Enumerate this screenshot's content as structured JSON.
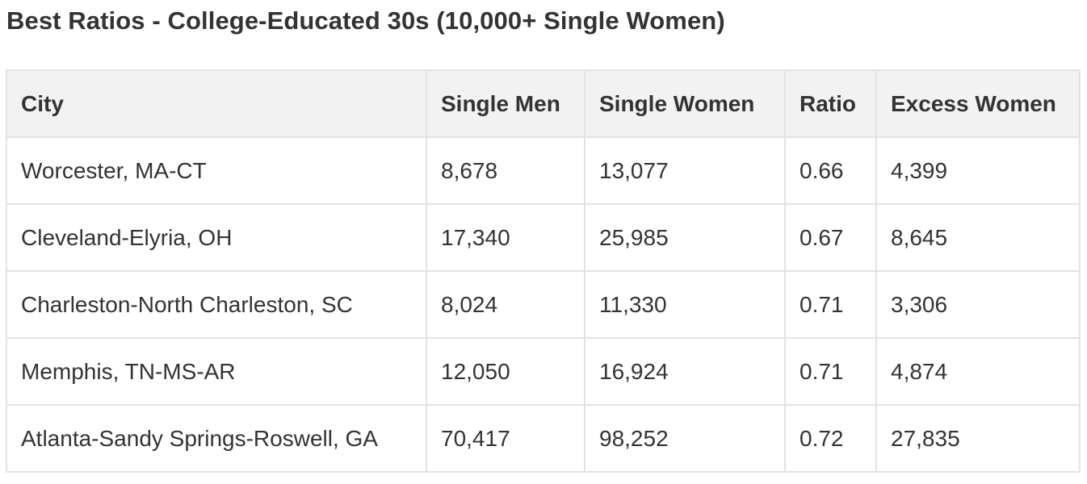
{
  "title": "Best Ratios - College-Educated 30s (10,000+ Single Women)",
  "table": {
    "headers": [
      "City",
      "Single Men",
      "Single Women",
      "Ratio",
      "Excess Women"
    ],
    "rows": [
      [
        "Worcester, MA-CT",
        "8,678",
        "13,077",
        "0.66",
        "4,399"
      ],
      [
        "Cleveland-Elyria, OH",
        "17,340",
        "25,985",
        "0.67",
        "8,645"
      ],
      [
        "Charleston-North Charleston, SC",
        "8,024",
        "11,330",
        "0.71",
        "3,306"
      ],
      [
        "Memphis, TN-MS-AR",
        "12,050",
        "16,924",
        "0.71",
        "4,874"
      ],
      [
        "Atlanta-Sandy Springs-Roswell, GA",
        "70,417",
        "98,252",
        "0.72",
        "27,835"
      ]
    ]
  }
}
